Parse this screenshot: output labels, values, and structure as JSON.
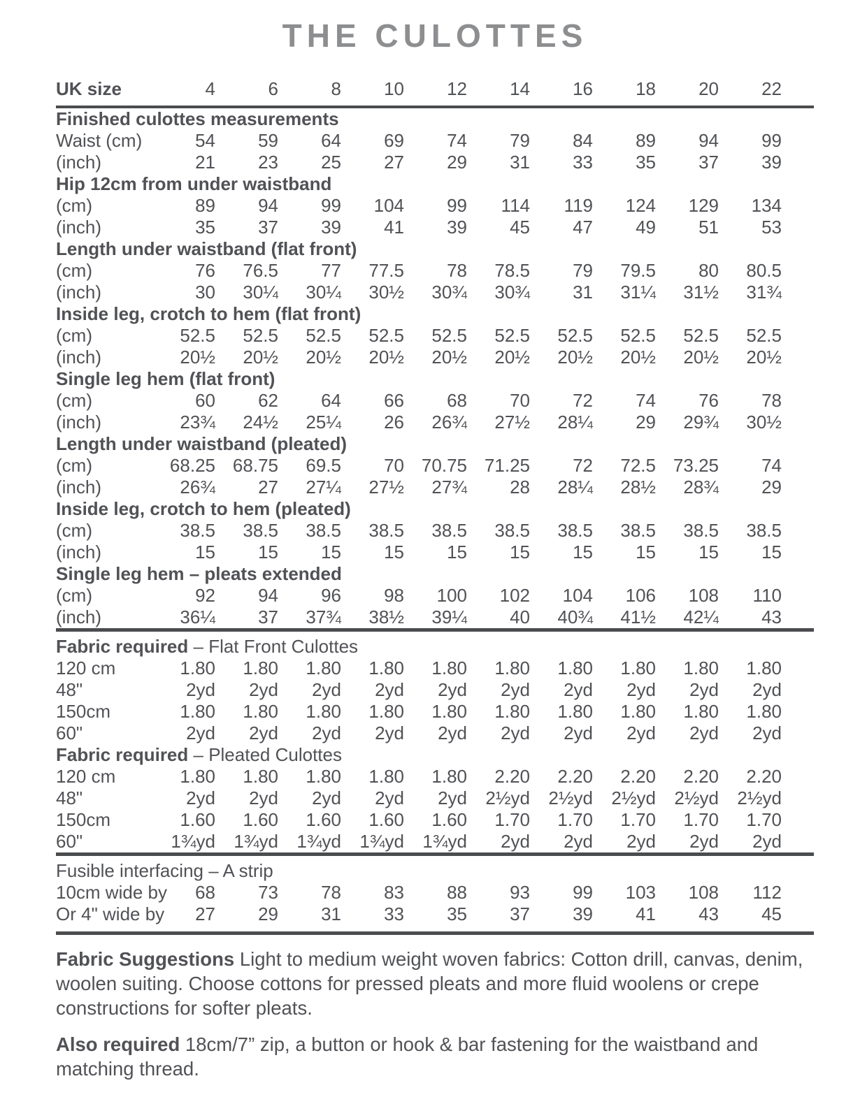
{
  "page": {
    "title": "THE CULOTTES"
  },
  "colors": {
    "text": "#515256",
    "title": "#8d8e90",
    "rule": "#4b4c4e"
  },
  "table": {
    "header": {
      "label": "UK size",
      "sizes": [
        "4",
        "6",
        "8",
        "10",
        "12",
        "14",
        "16",
        "18",
        "20",
        "22"
      ]
    },
    "rows": [
      {
        "type": "section",
        "label": "Finished culottes measurements"
      },
      {
        "type": "data",
        "label": "Waist (cm)",
        "values": [
          "54",
          "59",
          "64",
          "69",
          "74",
          "79",
          "84",
          "89",
          "94",
          "99"
        ]
      },
      {
        "type": "data",
        "label": "(inch)",
        "values": [
          "21",
          "23",
          "25",
          "27",
          "29",
          "31",
          "33",
          "35",
          "37",
          "39"
        ]
      },
      {
        "type": "section",
        "label": "Hip 12cm from under waistband"
      },
      {
        "type": "data",
        "label": "(cm)",
        "values": [
          "89",
          "94",
          "99",
          "104",
          "99",
          "114",
          "119",
          "124",
          "129",
          "134"
        ]
      },
      {
        "type": "data",
        "label": "(inch)",
        "values": [
          "35",
          "37",
          "39",
          "41",
          "39",
          "45",
          "47",
          "49",
          "51",
          "53"
        ]
      },
      {
        "type": "section",
        "label": "Length under waistband (flat front)"
      },
      {
        "type": "data",
        "label": "(cm)",
        "values": [
          "76",
          "76.5",
          "77",
          "77.5",
          "78",
          "78.5",
          "79",
          "79.5",
          "80",
          "80.5"
        ]
      },
      {
        "type": "data",
        "label": "(inch)",
        "values": [
          "30",
          "30¼",
          "30¼",
          "30½",
          "30¾",
          "30¾",
          "31",
          "31¼",
          "31½",
          "31¾"
        ]
      },
      {
        "type": "section",
        "label": "Inside leg, crotch to hem (flat front)"
      },
      {
        "type": "data",
        "label": "(cm)",
        "values": [
          "52.5",
          "52.5",
          "52.5",
          "52.5",
          "52.5",
          "52.5",
          "52.5",
          "52.5",
          "52.5",
          "52.5"
        ]
      },
      {
        "type": "data",
        "label": "(inch)",
        "values": [
          "20½",
          "20½",
          "20½",
          "20½",
          "20½",
          "20½",
          "20½",
          "20½",
          "20½",
          "20½"
        ]
      },
      {
        "type": "section",
        "label": "Single leg hem (flat front)"
      },
      {
        "type": "data",
        "label": "(cm)",
        "values": [
          "60",
          "62",
          "64",
          "66",
          "68",
          "70",
          "72",
          "74",
          "76",
          "78"
        ]
      },
      {
        "type": "data",
        "label": "(inch)",
        "values": [
          "23¾",
          "24½",
          "25¼",
          "26",
          "26¾",
          "27½",
          "28¼",
          "29",
          "29¾",
          "30½"
        ]
      },
      {
        "type": "section",
        "label": "Length under waistband (pleated)"
      },
      {
        "type": "data",
        "label": "(cm)",
        "values": [
          "68.25",
          "68.75",
          "69.5",
          "70",
          "70.75",
          "71.25",
          "72",
          "72.5",
          "73.25",
          "74"
        ]
      },
      {
        "type": "data",
        "label": "(inch)",
        "values": [
          "26¾",
          "27",
          "27¼",
          "27½",
          "27¾",
          "28",
          "28¼",
          "28½",
          "28¾",
          "29"
        ]
      },
      {
        "type": "section",
        "label": "Inside leg, crotch to hem (pleated)"
      },
      {
        "type": "data",
        "label": "(cm)",
        "values": [
          "38.5",
          "38.5",
          "38.5",
          "38.5",
          "38.5",
          "38.5",
          "38.5",
          "38.5",
          "38.5",
          "38.5"
        ]
      },
      {
        "type": "data",
        "label": "(inch)",
        "values": [
          "15",
          "15",
          "15",
          "15",
          "15",
          "15",
          "15",
          "15",
          "15",
          "15"
        ]
      },
      {
        "type": "section",
        "label": "Single leg hem – pleats extended"
      },
      {
        "type": "data",
        "label": "(cm)",
        "values": [
          "92",
          "94",
          "96",
          "98",
          "100",
          "102",
          "104",
          "106",
          "108",
          "110"
        ]
      },
      {
        "type": "data",
        "label": "(inch)",
        "values": [
          "36¼",
          "37",
          "37¾",
          "38½",
          "39¼",
          "40",
          "40¾",
          "41½",
          "42¼",
          "43"
        ]
      },
      {
        "type": "section",
        "rule": true,
        "lead": "Fabric required",
        "rest": "– Flat Front Culottes"
      },
      {
        "type": "data",
        "label": "120 cm",
        "values": [
          "1.80",
          "1.80",
          "1.80",
          "1.80",
          "1.80",
          "1.80",
          "1.80",
          "1.80",
          "1.80",
          "1.80"
        ]
      },
      {
        "type": "data",
        "label": "48\"",
        "values": [
          "2yd",
          "2yd",
          "2yd",
          "2yd",
          "2yd",
          "2yd",
          "2yd",
          "2yd",
          "2yd",
          "2yd"
        ]
      },
      {
        "type": "data",
        "label": "150cm",
        "values": [
          "1.80",
          "1.80",
          "1.80",
          "1.80",
          "1.80",
          "1.80",
          "1.80",
          "1.80",
          "1.80",
          "1.80"
        ]
      },
      {
        "type": "data",
        "label": "60\"",
        "values": [
          "2yd",
          "2yd",
          "2yd",
          "2yd",
          "2yd",
          "2yd",
          "2yd",
          "2yd",
          "2yd",
          "2yd"
        ]
      },
      {
        "type": "section",
        "lead": "Fabric required",
        "rest": "– Pleated Culottes"
      },
      {
        "type": "data",
        "label": "120 cm",
        "values": [
          "1.80",
          "1.80",
          "1.80",
          "1.80",
          "1.80",
          "2.20",
          "2.20",
          "2.20",
          "2.20",
          "2.20"
        ]
      },
      {
        "type": "data",
        "label": "48\"",
        "values": [
          "2yd",
          "2yd",
          "2yd",
          "2yd",
          "2yd",
          "2½yd",
          "2½yd",
          "2½yd",
          "2½yd",
          "2½yd"
        ]
      },
      {
        "type": "data",
        "label": "150cm",
        "values": [
          "1.60",
          "1.60",
          "1.60",
          "1.60",
          "1.60",
          "1.70",
          "1.70",
          "1.70",
          "1.70",
          "1.70"
        ]
      },
      {
        "type": "data",
        "label": "60\"",
        "values": [
          "1¾yd",
          "1¾yd",
          "1¾yd",
          "1¾yd",
          "1¾yd",
          "2yd",
          "2yd",
          "2yd",
          "2yd",
          "2yd"
        ]
      },
      {
        "type": "section",
        "rule": true,
        "plain": true,
        "label": "Fusible interfacing – A strip"
      },
      {
        "type": "data",
        "label": "10cm wide by",
        "values": [
          "68",
          "73",
          "78",
          "83",
          "88",
          "93",
          "99",
          "103",
          "108",
          "112"
        ]
      },
      {
        "type": "data",
        "label": "Or 4\" wide by",
        "values": [
          "27",
          "29",
          "31",
          "33",
          "35",
          "37",
          "39",
          "41",
          "43",
          "45"
        ]
      }
    ]
  },
  "notes": [
    {
      "lead": "Fabric Suggestions",
      "text": "Light to medium weight woven fabrics: Cotton drill, canvas, denim, woolen suiting. Choose cottons for pressed pleats and more fluid woolens or crepe constructions for softer pleats."
    },
    {
      "lead": "Also required",
      "text": "18cm/7” zip, a button or hook & bar fastening for the waistband and matching thread."
    }
  ]
}
